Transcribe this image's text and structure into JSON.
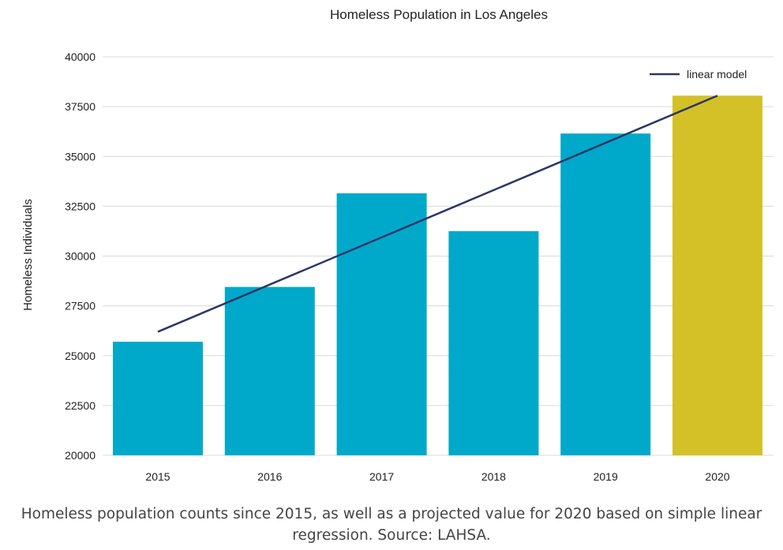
{
  "chart_data": {
    "type": "bar",
    "title": "Homeless Population in Los Angeles",
    "xlabel": "",
    "ylabel": "Homeless Individuals",
    "categories": [
      "2015",
      "2016",
      "2017",
      "2018",
      "2019",
      "2020"
    ],
    "series": [
      {
        "values": [
          25700,
          28450,
          33150,
          31250,
          36150,
          38050
        ]
      }
    ],
    "line_series": {
      "name": "linear model",
      "x": [
        "2015",
        "2020"
      ],
      "values": [
        26200,
        38050
      ]
    },
    "ylim": [
      20000,
      40000
    ],
    "yticks": [
      20000,
      22500,
      25000,
      27500,
      30000,
      32500,
      35000,
      37500,
      40000
    ],
    "grid": "horizontal",
    "legend": "top-right",
    "colors": {
      "bar": "#00a9c9",
      "projected_bar": "#d4c127",
      "line": "#2d3566",
      "grid": "#d9d9d9",
      "text": "#222222"
    }
  },
  "caption": "Homeless population counts since 2015, as well as a projected value for 2020 based on simple linear regression. Source: LAHSA."
}
